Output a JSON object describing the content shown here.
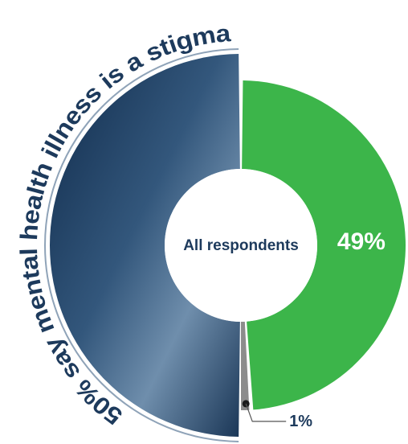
{
  "chart_data": {
    "type": "donut",
    "title": "50% say mental health illness is a stigma",
    "center_label": "All respondents",
    "values": [
      50,
      49,
      1
    ],
    "value_labels": [
      null,
      "49%",
      "1%"
    ],
    "colors": [
      "#1d3a5c",
      "#3cb54a",
      "#8c8c8c"
    ]
  }
}
